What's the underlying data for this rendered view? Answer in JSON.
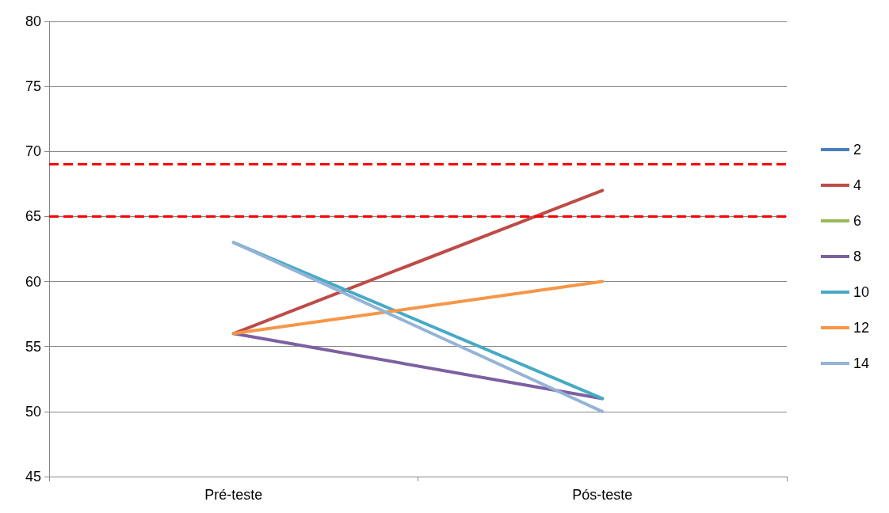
{
  "chart_data": {
    "type": "line",
    "categories": [
      "Pré-teste",
      "Pós-teste"
    ],
    "series": [
      {
        "name": "2",
        "color": "#4a7ebb",
        "values": [
          null,
          null
        ]
      },
      {
        "name": "4",
        "color": "#be4b48",
        "values": [
          56,
          67
        ]
      },
      {
        "name": "6",
        "color": "#98b954",
        "values": [
          null,
          null
        ]
      },
      {
        "name": "8",
        "color": "#7d60a0",
        "values": [
          56,
          51
        ]
      },
      {
        "name": "10",
        "color": "#46aac5",
        "values": [
          63,
          51
        ]
      },
      {
        "name": "12",
        "color": "#f79646",
        "values": [
          56,
          60
        ]
      },
      {
        "name": "14",
        "color": "#95b3d7",
        "values": [
          63,
          50
        ]
      }
    ],
    "ylim": [
      45,
      80
    ],
    "yticks": [
      45,
      50,
      55,
      60,
      65,
      70,
      75,
      80
    ],
    "grid": "y",
    "legend": "right",
    "marker": "none",
    "line_style": "solid",
    "ref_lines": [
      {
        "axis": "y",
        "value": 69,
        "color": "#ff0000",
        "line_style": "dashed"
      },
      {
        "axis": "y",
        "value": 65,
        "color": "#ff0000",
        "line_style": "dashed"
      }
    ]
  }
}
